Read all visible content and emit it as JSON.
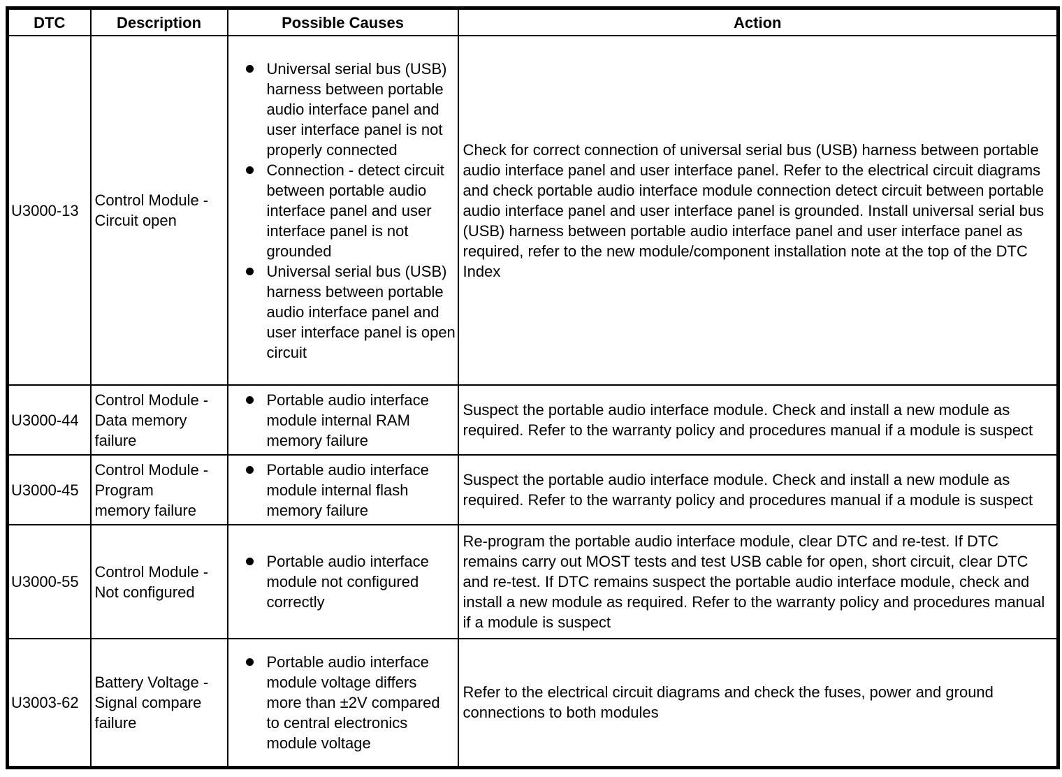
{
  "page": {
    "background_color": "#ffffff",
    "text_color": "#000000",
    "border_color": "#000000"
  },
  "table": {
    "headers": [
      "DTC",
      "Description",
      "Possible Causes",
      "Action"
    ],
    "rows": [
      {
        "dtc": "U3000-13",
        "description": "Control Module - Circuit open",
        "causes": [
          "Universal serial bus (USB) harness between portable audio interface panel and user interface panel is not properly connected",
          "Connection - detect circuit between portable audio interface panel and user interface panel is not grounded",
          "Universal serial bus (USB) harness between portable audio interface panel and user interface panel is open circuit"
        ],
        "action": "Check for correct connection of universal serial bus (USB) harness between portable audio interface panel and user interface panel. Refer to the electrical circuit diagrams and check portable audio interface module connection detect circuit between portable audio interface panel and user interface panel is grounded. Install universal serial bus (USB) harness between portable audio interface panel and user interface panel as required, refer to the new module/component installation note at the top of the DTC Index"
      },
      {
        "dtc": "U3000-44",
        "description": "Control Module - Data memory failure",
        "causes": [
          "Portable audio interface module internal RAM memory failure"
        ],
        "action": "Suspect the portable audio interface module. Check and install a new module as required. Refer to the warranty policy and procedures manual if a module is suspect"
      },
      {
        "dtc": "U3000-45",
        "description": "Control Module - Program memory failure",
        "causes": [
          "Portable audio interface module internal flash memory failure"
        ],
        "action": "Suspect the portable audio interface module. Check and install a new module as required. Refer to the warranty policy and procedures manual if a module is suspect"
      },
      {
        "dtc": "U3000-55",
        "description": "Control Module - Not configured",
        "causes": [
          "Portable audio interface module not configured correctly"
        ],
        "action": "Re-program the portable audio interface module, clear DTC and re-test. If DTC remains carry out MOST tests and test USB cable for open, short circuit, clear DTC and re-test. If DTC remains suspect the portable audio interface module, check and install a new module as required. Refer to the warranty policy and procedures manual if a module is suspect"
      },
      {
        "dtc": "U3003-62",
        "description": "Battery Voltage - Signal compare failure",
        "causes": [
          "Portable audio interface module voltage differs more than ±2V compared to central electronics module voltage"
        ],
        "action": "Refer to the electrical circuit diagrams and check the fuses, power and ground connections to both modules"
      }
    ]
  }
}
